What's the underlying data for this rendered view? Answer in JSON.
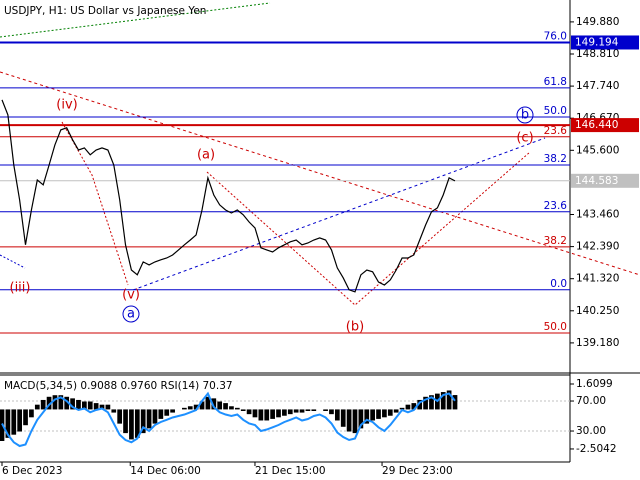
{
  "chart_data": [
    {
      "type": "line",
      "title": "USDJPY, H1:  US Dollar vs Japanese Yen",
      "color": "#000000",
      "values": [
        147.28,
        146.78,
        145.11,
        143.95,
        142.45,
        143.61,
        144.61,
        144.45,
        145.11,
        145.78,
        146.28,
        146.35,
        145.95,
        145.61,
        145.68,
        145.45,
        145.61,
        145.68,
        145.61,
        145.11,
        143.95,
        142.45,
        141.61,
        141.45,
        141.88,
        141.78,
        141.88,
        141.95,
        142.01,
        142.11,
        142.28,
        142.45,
        142.61,
        142.78,
        143.61,
        144.68,
        144.11,
        143.78,
        143.61,
        143.51,
        143.61,
        143.45,
        143.21,
        143.01,
        142.35,
        142.28,
        142.21,
        142.35,
        142.45,
        142.55,
        142.61,
        142.45,
        142.51,
        142.61,
        142.68,
        142.61,
        142.28,
        141.68,
        141.35,
        140.95,
        140.88,
        141.45,
        141.61,
        141.55,
        141.21,
        141.11,
        141.28,
        141.61,
        142.01,
        142.01,
        142.11,
        142.61,
        143.11,
        143.55,
        143.68,
        144.11,
        144.68,
        144.58
      ],
      "ylim": [
        138.21,
        150.61
      ],
      "yticks": [
        {
          "value": 149.88,
          "label": "149.880"
        },
        {
          "value": 148.81,
          "label": "148.810"
        },
        {
          "value": 147.74,
          "label": "147.740"
        },
        {
          "value": 146.67,
          "label": "146.670"
        },
        {
          "value": 145.6,
          "label": "145.600"
        },
        {
          "value": 143.46,
          "label": "143.460"
        },
        {
          "value": 142.39,
          "label": "142.390"
        },
        {
          "value": 141.32,
          "label": "141.320"
        },
        {
          "value": 140.25,
          "label": "140.250"
        },
        {
          "value": 139.18,
          "label": "139.180"
        }
      ],
      "last_price": 144.583,
      "levels": [
        {
          "name": "76.0",
          "price": 149.194,
          "color": "#0000cc",
          "boxed": true
        },
        {
          "name": "61.8",
          "price": 147.68,
          "color": "#0000cc"
        },
        {
          "name": "50.0",
          "price": 146.71,
          "color": "#0000cc"
        },
        {
          "price": {
            "value": 146.44,
            "label": "146.440"
          },
          "color": "#cc0000",
          "boxed": true
        },
        {
          "name": "23.6",
          "price": 146.05,
          "color": "#cc0000"
        },
        {
          "name": "38.2",
          "price": 145.11,
          "color": "#0000cc"
        },
        {
          "name": "23.6",
          "price": 143.55,
          "color": "#0000cc"
        },
        {
          "name": "38.2",
          "price": 142.38,
          "color": "#cc0000"
        },
        {
          "name": "0.0",
          "price": 140.95,
          "color": "#0000cc"
        },
        {
          "name": "50.0",
          "price": 139.51,
          "color": "#cc0000"
        }
      ],
      "annotations": [
        {
          "text": "(iv)",
          "color": "#cc0000"
        },
        {
          "text": "(a)",
          "color": "#cc0000"
        },
        {
          "text": "(iii)",
          "color": "#cc0000"
        },
        {
          "text": "(v)",
          "color": "#cc0000"
        },
        {
          "text": "a",
          "color": "#0000cc"
        },
        {
          "text": "(b)",
          "color": "#cc0000"
        },
        {
          "text": "(c)",
          "color": "#cc0000"
        },
        {
          "text": "b",
          "color": "#0000cc"
        }
      ]
    },
    {
      "type": "indicator",
      "title": "MACD(5,34,5) 0.9088 0.9760 RSI(14) 70.37",
      "series": [
        {
          "name": "MACD",
          "color": "#000000",
          "values": [
            -2.0,
            -1.8,
            -1.6,
            -1.4,
            -1.0,
            -0.5,
            0.3,
            0.6,
            0.8,
            0.9,
            0.9,
            0.8,
            0.7,
            0.6,
            0.5,
            0.5,
            0.4,
            0.3,
            0.3,
            -0.2,
            -0.9,
            -1.5,
            -1.9,
            -1.8,
            -1.5,
            -1.2,
            -0.9,
            -0.6,
            -0.4,
            -0.2,
            0.0,
            0.1,
            0.2,
            0.3,
            0.5,
            0.8,
            0.7,
            0.5,
            0.4,
            0.2,
            0.1,
            -0.1,
            -0.3,
            -0.5,
            -0.7,
            -0.7,
            -0.6,
            -0.5,
            -0.4,
            -0.3,
            -0.2,
            -0.2,
            -0.1,
            -0.1,
            0.0,
            -0.1,
            -0.3,
            -0.7,
            -1.1,
            -1.4,
            -1.5,
            -1.2,
            -0.9,
            -0.7,
            -0.6,
            -0.5,
            -0.4,
            -0.2,
            0.1,
            0.3,
            0.4,
            0.6,
            0.8,
            0.9,
            1.0,
            1.1,
            1.2,
            0.91
          ]
        },
        {
          "name": "RSI",
          "color": "#1e90ff",
          "axis": "y2",
          "values": [
            40,
            25,
            15,
            10,
            12,
            30,
            45,
            55,
            65,
            72,
            75,
            70,
            62,
            58,
            60,
            55,
            58,
            60,
            55,
            40,
            25,
            18,
            15,
            20,
            35,
            30,
            38,
            42,
            45,
            48,
            50,
            52,
            55,
            58,
            70,
            80,
            62,
            55,
            52,
            50,
            52,
            45,
            40,
            38,
            30,
            32,
            35,
            38,
            42,
            45,
            48,
            44,
            46,
            50,
            52,
            48,
            40,
            28,
            22,
            18,
            20,
            38,
            45,
            42,
            35,
            30,
            38,
            48,
            58,
            55,
            58,
            68,
            72,
            75,
            70,
            78,
            80,
            70.37
          ]
        }
      ],
      "ylim": [
        -3.33,
        2.18
      ],
      "yticks": [
        1.6099,
        -2.5042
      ],
      "y2lim": [
        -11.3,
        104.7
      ],
      "y2ticks": [
        {
          "value": 70,
          "label": "70.00"
        },
        {
          "value": 30,
          "label": "30.00"
        }
      ],
      "xticks": [
        {
          "value": 0,
          "label": "6 Dec 2023"
        },
        {
          "value": 21.8,
          "label": "14 Dec 06:00"
        },
        {
          "value": 43,
          "label": "21 Dec 15:00"
        },
        {
          "value": 64.6,
          "label": "29 Dec 23:00"
        }
      ]
    }
  ]
}
